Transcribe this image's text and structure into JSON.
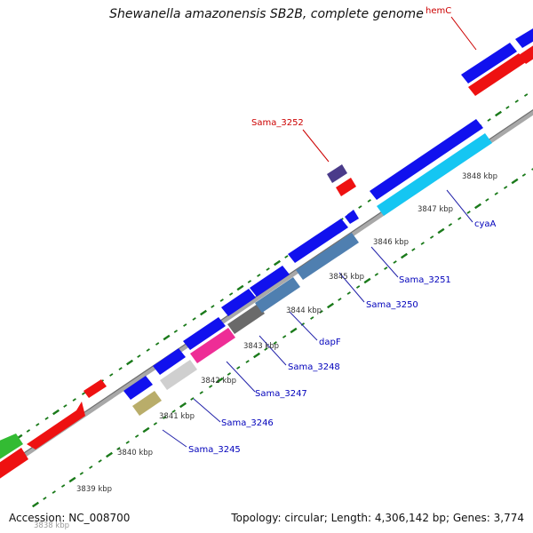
{
  "title": "Shewanella amazonensis SB2B, complete genome",
  "accession": "Accession: NC_008700",
  "summary": "Topology: circular; Length: 4,306,142 bp; Genes: 3,774",
  "colors": {
    "backbone": "#808080",
    "forward": "#0000ee",
    "reverse": "#ee0000",
    "tick": "#1a7a1a",
    "label_forward": "#0000bb",
    "label_reverse": "#cc0000",
    "kbp_text": "#333333"
  },
  "scale_labels": [
    "3838 kbp",
    "3839 kbp",
    "3840 kbp",
    "3841 kbp",
    "3842 kbp",
    "3843 kbp",
    "3844 kbp",
    "3845 kbp",
    "3846 kbp",
    "3847 kbp",
    "3848 kbp"
  ],
  "gene_labels": [
    {
      "text": "hemC",
      "strand": "reverse"
    },
    {
      "text": "Sama_3252",
      "strand": "reverse"
    },
    {
      "text": "cyaA",
      "strand": "forward"
    },
    {
      "text": "Sama_3251",
      "strand": "forward"
    },
    {
      "text": "Sama_3250",
      "strand": "forward"
    },
    {
      "text": "dapF",
      "strand": "forward"
    },
    {
      "text": "Sama_3248",
      "strand": "forward"
    },
    {
      "text": "Sama_3247",
      "strand": "forward"
    },
    {
      "text": "Sama_3246",
      "strand": "forward"
    },
    {
      "text": "Sama_3245",
      "strand": "forward"
    }
  ]
}
